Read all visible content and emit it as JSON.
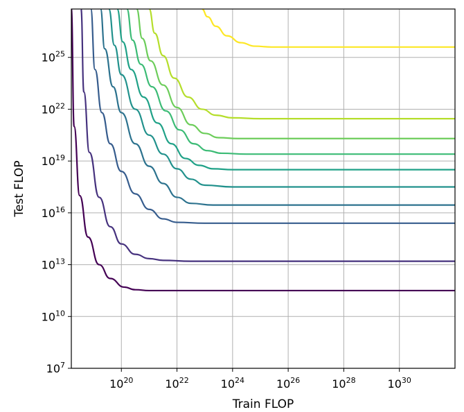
{
  "chart_data": {
    "type": "line",
    "title": "",
    "xlabel": "Train FLOP",
    "ylabel": "Test FLOP",
    "x_scale": "log",
    "y_scale": "log",
    "xlim_log10": [
      18.2,
      32.0
    ],
    "ylim_log10": [
      7,
      27.8
    ],
    "grid": true,
    "legend": "none",
    "x_ticks": [
      {
        "base": "10",
        "exp": "20",
        "log10": 20
      },
      {
        "base": "10",
        "exp": "22",
        "log10": 22
      },
      {
        "base": "10",
        "exp": "24",
        "log10": 24
      },
      {
        "base": "10",
        "exp": "26",
        "log10": 26
      },
      {
        "base": "10",
        "exp": "28",
        "log10": 28
      },
      {
        "base": "10",
        "exp": "30",
        "log10": 30
      }
    ],
    "y_ticks": [
      {
        "base": "10",
        "exp": "7",
        "log10": 7
      },
      {
        "base": "10",
        "exp": "10",
        "log10": 10
      },
      {
        "base": "10",
        "exp": "13",
        "log10": 13
      },
      {
        "base": "10",
        "exp": "16",
        "log10": 16
      },
      {
        "base": "10",
        "exp": "19",
        "log10": 19
      },
      {
        "base": "10",
        "exp": "22",
        "log10": 22
      },
      {
        "base": "10",
        "exp": "25",
        "log10": 25
      }
    ],
    "series": [
      {
        "color": "#440154",
        "points_log10": [
          [
            18.2,
            27.8
          ],
          [
            18.3,
            21.0
          ],
          [
            18.5,
            17.0
          ],
          [
            18.8,
            14.6
          ],
          [
            19.2,
            13.0
          ],
          [
            19.6,
            12.2
          ],
          [
            20.1,
            11.7
          ],
          [
            20.5,
            11.55
          ],
          [
            21.0,
            11.5
          ],
          [
            32.0,
            11.5
          ]
        ]
      },
      {
        "color": "#46327e",
        "points_log10": [
          [
            18.55,
            27.8
          ],
          [
            18.65,
            23.0
          ],
          [
            18.85,
            19.5
          ],
          [
            19.2,
            16.9
          ],
          [
            19.6,
            15.2
          ],
          [
            20.0,
            14.2
          ],
          [
            20.5,
            13.6
          ],
          [
            21.0,
            13.35
          ],
          [
            21.5,
            13.25
          ],
          [
            22.5,
            13.2
          ],
          [
            32.0,
            13.2
          ]
        ]
      },
      {
        "color": "#365c8d",
        "points_log10": [
          [
            18.9,
            27.8
          ],
          [
            19.05,
            24.3
          ],
          [
            19.3,
            21.8
          ],
          [
            19.6,
            20.0
          ],
          [
            20.0,
            18.4
          ],
          [
            20.5,
            17.1
          ],
          [
            21.0,
            16.2
          ],
          [
            21.5,
            15.65
          ],
          [
            22.0,
            15.45
          ],
          [
            23.0,
            15.4
          ],
          [
            32.0,
            15.4
          ]
        ]
      },
      {
        "color": "#2c728e",
        "points_log10": [
          [
            19.25,
            27.8
          ],
          [
            19.4,
            25.5
          ],
          [
            19.7,
            23.3
          ],
          [
            20.0,
            21.8
          ],
          [
            20.5,
            20.0
          ],
          [
            21.0,
            18.7
          ],
          [
            21.5,
            17.7
          ],
          [
            22.0,
            16.9
          ],
          [
            22.5,
            16.55
          ],
          [
            23.3,
            16.45
          ],
          [
            32.0,
            16.45
          ]
        ]
      },
      {
        "color": "#21918c",
        "points_log10": [
          [
            19.55,
            27.8
          ],
          [
            19.75,
            25.7
          ],
          [
            20.0,
            24.0
          ],
          [
            20.5,
            22.0
          ],
          [
            21.0,
            20.5
          ],
          [
            21.5,
            19.4
          ],
          [
            22.0,
            18.55
          ],
          [
            22.5,
            17.95
          ],
          [
            23.0,
            17.6
          ],
          [
            24.0,
            17.5
          ],
          [
            32.0,
            17.5
          ]
        ]
      },
      {
        "color": "#1fa187",
        "points_log10": [
          [
            19.85,
            27.8
          ],
          [
            20.05,
            25.9
          ],
          [
            20.35,
            24.3
          ],
          [
            20.8,
            22.7
          ],
          [
            21.3,
            21.2
          ],
          [
            21.8,
            20.0
          ],
          [
            22.3,
            19.15
          ],
          [
            22.8,
            18.75
          ],
          [
            23.3,
            18.55
          ],
          [
            24.0,
            18.5
          ],
          [
            32.0,
            18.5
          ]
        ]
      },
      {
        "color": "#3bbb75",
        "points_log10": [
          [
            20.2,
            27.8
          ],
          [
            20.4,
            26.0
          ],
          [
            20.7,
            24.6
          ],
          [
            21.1,
            23.3
          ],
          [
            21.6,
            21.9
          ],
          [
            22.1,
            20.8
          ],
          [
            22.6,
            20.0
          ],
          [
            23.1,
            19.6
          ],
          [
            23.6,
            19.45
          ],
          [
            24.5,
            19.4
          ],
          [
            32.0,
            19.4
          ]
        ]
      },
      {
        "color": "#6ccd5a",
        "points_log10": [
          [
            20.55,
            27.8
          ],
          [
            20.75,
            26.1
          ],
          [
            21.05,
            24.8
          ],
          [
            21.5,
            23.4
          ],
          [
            22.0,
            22.1
          ],
          [
            22.5,
            21.1
          ],
          [
            23.0,
            20.6
          ],
          [
            23.5,
            20.35
          ],
          [
            24.2,
            20.3
          ],
          [
            32.0,
            20.3
          ]
        ]
      },
      {
        "color": "#b5de2b",
        "points_log10": [
          [
            21.0,
            27.8
          ],
          [
            21.2,
            26.4
          ],
          [
            21.5,
            25.1
          ],
          [
            21.9,
            23.8
          ],
          [
            22.4,
            22.7
          ],
          [
            22.9,
            22.0
          ],
          [
            23.4,
            21.65
          ],
          [
            24.0,
            21.5
          ],
          [
            25.0,
            21.45
          ],
          [
            32.0,
            21.45
          ]
        ]
      },
      {
        "color": "#fde725",
        "points_log10": [
          [
            22.9,
            27.8
          ],
          [
            23.1,
            27.35
          ],
          [
            23.4,
            26.8
          ],
          [
            23.8,
            26.25
          ],
          [
            24.3,
            25.85
          ],
          [
            24.8,
            25.65
          ],
          [
            25.4,
            25.6
          ],
          [
            32.0,
            25.6
          ]
        ]
      }
    ]
  }
}
